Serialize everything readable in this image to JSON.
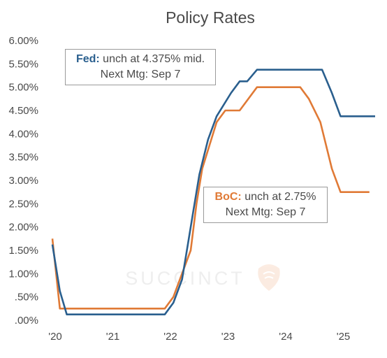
{
  "chart_data": {
    "type": "line",
    "title": "Policy Rates",
    "xlabel": "",
    "ylabel": "",
    "x_ticks": [
      "'20",
      "'21",
      "'22",
      "'23",
      "'24",
      "'25"
    ],
    "y_ticks": [
      "6.00%",
      "5.50%",
      "5.00%",
      "4.50%",
      "4.00%",
      "3.50%",
      "3.00%",
      "2.50%",
      "2.00%",
      "1.50%",
      "1.00%",
      ".50%",
      ".00%"
    ],
    "ylim": [
      0,
      6
    ],
    "xlim": [
      2020.0,
      2025.6
    ],
    "grid": false,
    "watermark": "SUCCINCT",
    "series": [
      {
        "name": "Fed",
        "color": "#2a5f8e",
        "points": [
          [
            2020.0,
            1.625
          ],
          [
            2020.13,
            0.625
          ],
          [
            2020.25,
            0.125
          ],
          [
            2021.95,
            0.125
          ],
          [
            2022.1,
            0.375
          ],
          [
            2022.25,
            0.875
          ],
          [
            2022.35,
            1.625
          ],
          [
            2022.45,
            2.375
          ],
          [
            2022.55,
            3.125
          ],
          [
            2022.7,
            3.875
          ],
          [
            2022.85,
            4.375
          ],
          [
            2023.1,
            4.875
          ],
          [
            2023.25,
            5.125
          ],
          [
            2023.38,
            5.125
          ],
          [
            2023.55,
            5.375
          ],
          [
            2024.68,
            5.375
          ],
          [
            2024.85,
            4.875
          ],
          [
            2025.0,
            4.375
          ],
          [
            2025.6,
            4.375
          ]
        ]
      },
      {
        "name": "BoC",
        "color": "#e07a36",
        "points": [
          [
            2020.0,
            1.75
          ],
          [
            2020.13,
            0.25
          ],
          [
            2021.95,
            0.25
          ],
          [
            2022.1,
            0.5
          ],
          [
            2022.25,
            1.0
          ],
          [
            2022.4,
            1.5
          ],
          [
            2022.5,
            2.5
          ],
          [
            2022.6,
            3.25
          ],
          [
            2022.85,
            4.25
          ],
          [
            2023.0,
            4.5
          ],
          [
            2023.25,
            4.5
          ],
          [
            2023.55,
            5.0
          ],
          [
            2024.3,
            5.0
          ],
          [
            2024.45,
            4.75
          ],
          [
            2024.65,
            4.25
          ],
          [
            2024.85,
            3.25
          ],
          [
            2025.0,
            2.75
          ],
          [
            2025.5,
            2.75
          ]
        ]
      }
    ],
    "annotations": [
      {
        "key": "Fed:",
        "text": "unch at 4.375% mid.",
        "line2": "Next Mtg: Sep 7",
        "color": "#2a5f8e"
      },
      {
        "key": "BoC:",
        "text": "unch at 2.75%",
        "line2": "Next Mtg: Sep 7",
        "color": "#e07a36"
      }
    ]
  }
}
